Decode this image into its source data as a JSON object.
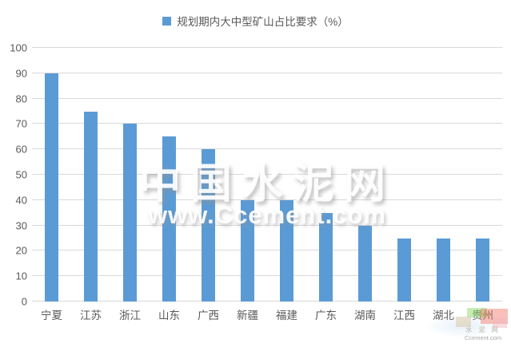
{
  "chart_data": {
    "type": "bar",
    "title": "",
    "legend": [
      "规划期内大中型矿山占比要求（%）"
    ],
    "legend_position": "top",
    "categories": [
      "宁夏",
      "江苏",
      "浙江",
      "山东",
      "广西",
      "新疆",
      "福建",
      "广东",
      "湖南",
      "江西",
      "湖北",
      "贵州"
    ],
    "values": [
      90,
      75,
      70,
      65,
      60,
      40,
      40,
      35,
      30,
      25,
      25,
      25
    ],
    "xlabel": "",
    "ylabel": "",
    "ylim": [
      0,
      100
    ],
    "ytick_step": 10,
    "yticks": [
      0,
      10,
      20,
      30,
      40,
      50,
      60,
      70,
      80,
      90,
      100
    ],
    "grid": true,
    "bar_color": "#5B9BD5"
  },
  "legend": {
    "label": "规划期内大中型矿山占比要求（%）"
  },
  "watermark": {
    "line1": "中国水泥网",
    "line2": "www.Ccement.com"
  },
  "corner_logo": {
    "line1": "水 泥 网",
    "line2": "Ccement.com"
  },
  "colors": {
    "bar": "#5B9BD5",
    "grid": "#D9D9D9",
    "axis_text": "#595959",
    "legend_text": "#595959"
  }
}
